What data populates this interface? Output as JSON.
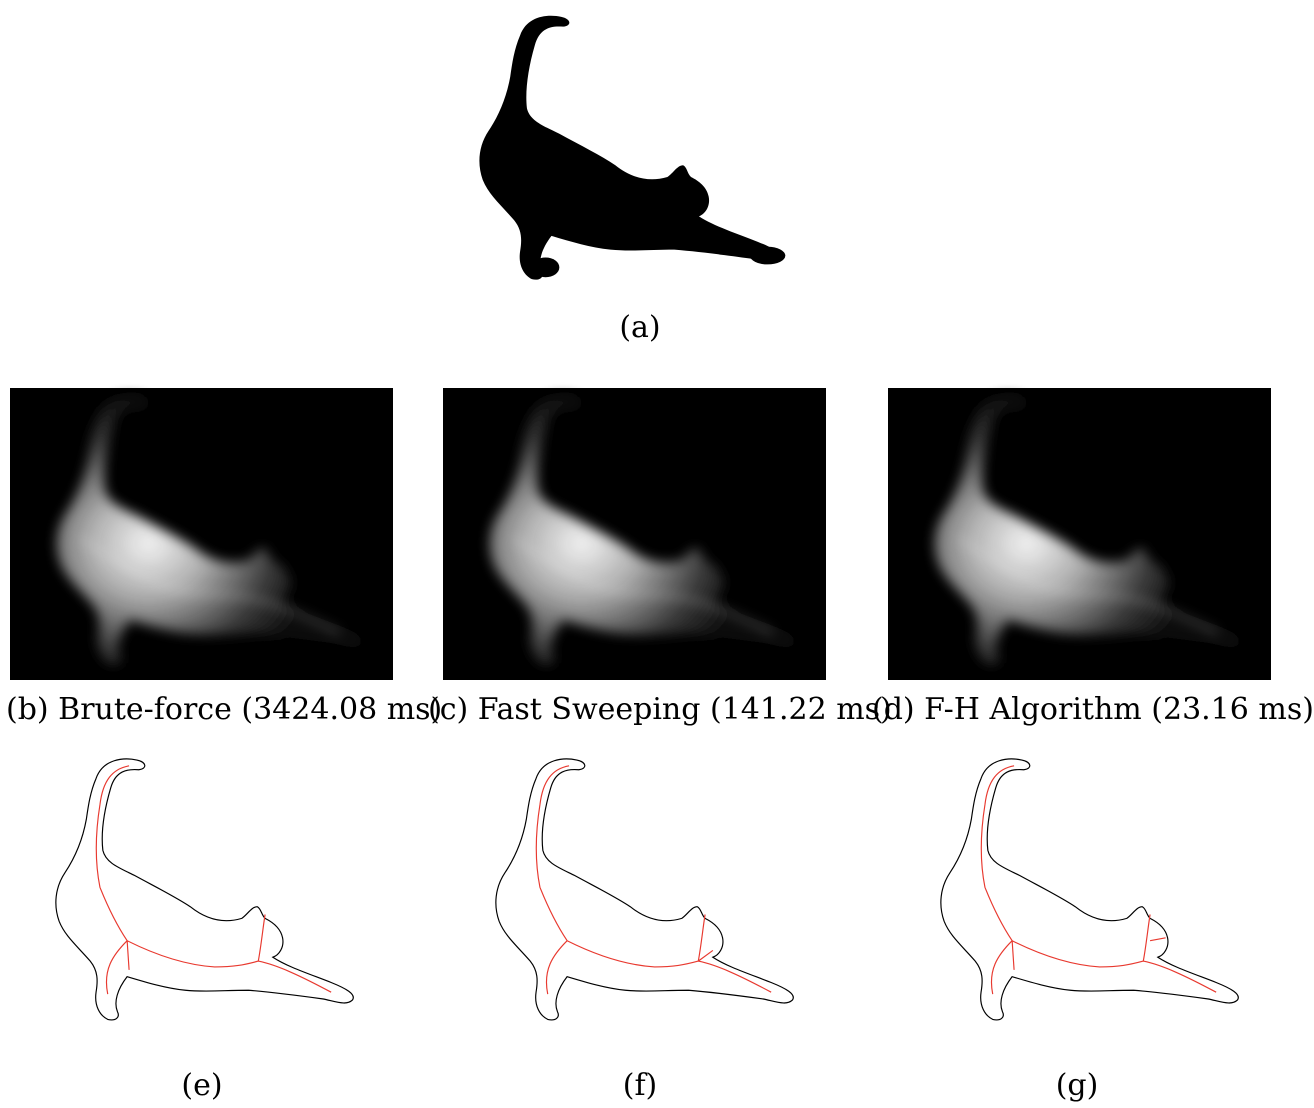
{
  "figure": {
    "panel_a": {
      "label": "(a)"
    },
    "distance_transforms": [
      {
        "label": "(b) Brute-force (3424.08 ms)"
      },
      {
        "label": "(c) Fast Sweeping (141.22 ms)"
      },
      {
        "label": "(d) F-H Algorithm (23.16 ms)"
      }
    ],
    "skeletons": [
      {
        "label": "(e)"
      },
      {
        "label": "(f)"
      },
      {
        "label": "(g)"
      }
    ],
    "colors": {
      "silhouette": "#000000",
      "background": "#ffffff",
      "contour": "#000000",
      "skeleton": "#e8392f"
    }
  }
}
